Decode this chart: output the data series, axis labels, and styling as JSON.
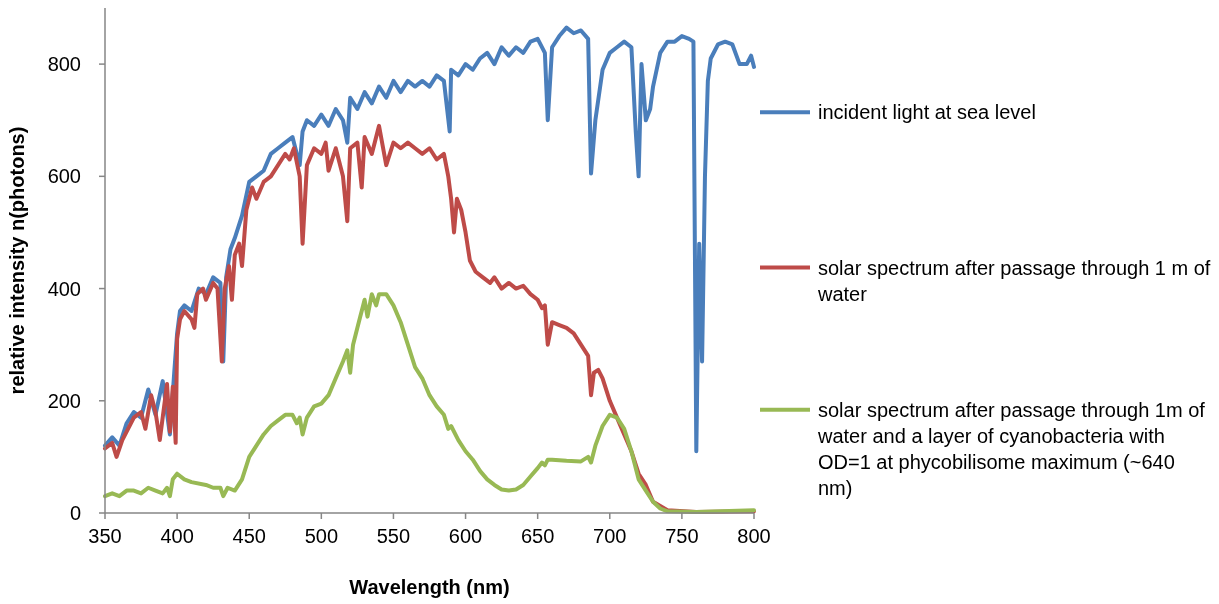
{
  "chart_data": {
    "type": "line",
    "xlabel": "Wavelength (nm)",
    "ylabel": "relative intensity n(photons)",
    "xlim": [
      350,
      800
    ],
    "xticks": [
      350,
      400,
      450,
      500,
      550,
      600,
      650,
      700,
      750,
      800
    ],
    "ylim": [
      0,
      900
    ],
    "yticks": [
      0,
      200,
      400,
      600,
      800
    ],
    "grid": false,
    "legend": "right",
    "marker": "none",
    "line_style": "solid",
    "series": [
      {
        "name": "incident light at sea level",
        "color": "#4a7ebb",
        "x": [
          350,
          355,
          360,
          365,
          370,
          375,
          380,
          385,
          390,
          395,
          398,
          400,
          402,
          405,
          410,
          415,
          420,
          425,
          430,
          432,
          434,
          437,
          440,
          445,
          450,
          455,
          460,
          465,
          470,
          475,
          480,
          485,
          487,
          490,
          495,
          500,
          505,
          510,
          515,
          518,
          520,
          525,
          530,
          535,
          540,
          545,
          550,
          555,
          560,
          565,
          570,
          575,
          580,
          585,
          589,
          590,
          595,
          600,
          605,
          610,
          615,
          620,
          625,
          630,
          635,
          640,
          645,
          650,
          655,
          657,
          660,
          665,
          670,
          675,
          680,
          685,
          687,
          690,
          695,
          700,
          705,
          710,
          715,
          718,
          720,
          722,
          725,
          728,
          730,
          735,
          740,
          745,
          750,
          755,
          758,
          760,
          762,
          764,
          766,
          768,
          770,
          775,
          780,
          785,
          790,
          795,
          798,
          800
        ],
        "values": [
          120,
          135,
          120,
          160,
          180,
          170,
          220,
          175,
          235,
          140,
          250,
          320,
          360,
          370,
          360,
          400,
          390,
          420,
          410,
          270,
          420,
          470,
          490,
          530,
          590,
          600,
          610,
          640,
          650,
          660,
          670,
          620,
          680,
          700,
          690,
          710,
          690,
          720,
          700,
          660,
          740,
          720,
          750,
          730,
          760,
          740,
          770,
          750,
          770,
          760,
          770,
          760,
          780,
          770,
          680,
          790,
          780,
          800,
          790,
          810,
          820,
          800,
          830,
          815,
          830,
          820,
          840,
          845,
          820,
          700,
          830,
          850,
          865,
          855,
          860,
          845,
          605,
          700,
          790,
          820,
          830,
          840,
          830,
          680,
          600,
          800,
          700,
          720,
          760,
          820,
          840,
          840,
          850,
          845,
          840,
          110,
          480,
          270,
          600,
          770,
          810,
          835,
          840,
          835,
          800,
          800,
          815,
          795
        ]
      },
      {
        "name": "solar spectrum after passage through 1 m of water",
        "color": "#be4b48",
        "x": [
          350,
          355,
          358,
          362,
          370,
          375,
          378,
          382,
          385,
          388,
          390,
          393,
          395,
          397,
          399,
          400,
          402,
          405,
          410,
          412,
          414,
          418,
          420,
          425,
          428,
          431,
          433,
          436,
          438,
          440,
          443,
          445,
          448,
          452,
          455,
          460,
          465,
          470,
          475,
          478,
          481,
          485,
          487,
          490,
          495,
          500,
          503,
          505,
          510,
          515,
          518,
          520,
          525,
          528,
          530,
          535,
          540,
          545,
          550,
          555,
          560,
          565,
          570,
          575,
          580,
          585,
          588,
          590,
          592,
          594,
          597,
          600,
          603,
          607,
          612,
          617,
          620,
          625,
          630,
          635,
          640,
          645,
          650,
          653,
          655,
          657,
          660,
          665,
          670,
          675,
          680,
          685,
          687,
          689,
          692,
          695,
          700,
          705,
          710,
          715,
          720,
          725,
          730,
          740,
          760,
          800
        ],
        "values": [
          115,
          125,
          100,
          130,
          170,
          180,
          150,
          210,
          180,
          130,
          170,
          230,
          145,
          225,
          125,
          310,
          345,
          360,
          345,
          330,
          390,
          400,
          380,
          410,
          400,
          270,
          400,
          440,
          380,
          460,
          480,
          440,
          540,
          580,
          560,
          590,
          600,
          620,
          640,
          630,
          650,
          600,
          480,
          620,
          650,
          640,
          660,
          610,
          650,
          600,
          520,
          650,
          660,
          580,
          670,
          640,
          690,
          620,
          660,
          650,
          660,
          650,
          640,
          650,
          630,
          640,
          600,
          560,
          500,
          560,
          540,
          500,
          450,
          430,
          420,
          410,
          420,
          400,
          410,
          400,
          405,
          390,
          380,
          365,
          370,
          300,
          340,
          335,
          330,
          320,
          300,
          280,
          210,
          250,
          255,
          240,
          200,
          170,
          140,
          110,
          70,
          50,
          20,
          5,
          2,
          3
        ]
      },
      {
        "name": "solar spectrum after passage through 1m of water and a layer of cyanobacteria with OD=1 at phycobilisome maximum (~640 nm)",
        "color": "#98b954",
        "x": [
          350,
          355,
          360,
          365,
          370,
          375,
          380,
          385,
          390,
          393,
          395,
          397,
          400,
          405,
          410,
          420,
          425,
          430,
          432,
          435,
          440,
          445,
          450,
          455,
          460,
          465,
          470,
          475,
          480,
          483,
          485,
          487,
          490,
          495,
          500,
          505,
          510,
          515,
          518,
          520,
          522,
          525,
          527,
          528,
          530,
          532,
          535,
          538,
          540,
          545,
          550,
          555,
          560,
          565,
          570,
          575,
          580,
          585,
          588,
          590,
          595,
          600,
          605,
          610,
          615,
          620,
          625,
          630,
          635,
          640,
          645,
          650,
          653,
          655,
          657,
          660,
          670,
          680,
          685,
          687,
          690,
          695,
          700,
          705,
          710,
          715,
          720,
          725,
          730,
          735,
          740,
          760,
          800
        ],
        "values": [
          30,
          35,
          30,
          40,
          40,
          35,
          45,
          40,
          35,
          45,
          30,
          60,
          70,
          60,
          55,
          50,
          45,
          45,
          30,
          45,
          40,
          60,
          100,
          120,
          140,
          155,
          165,
          175,
          175,
          160,
          170,
          140,
          170,
          190,
          195,
          210,
          240,
          270,
          290,
          250,
          300,
          330,
          350,
          360,
          380,
          350,
          390,
          370,
          390,
          390,
          370,
          340,
          300,
          260,
          240,
          210,
          190,
          175,
          150,
          155,
          130,
          110,
          95,
          75,
          60,
          50,
          42,
          40,
          42,
          50,
          65,
          80,
          90,
          85,
          95,
          95,
          93,
          92,
          100,
          90,
          120,
          155,
          175,
          170,
          150,
          110,
          60,
          40,
          20,
          8,
          3,
          2,
          5
        ]
      }
    ]
  }
}
